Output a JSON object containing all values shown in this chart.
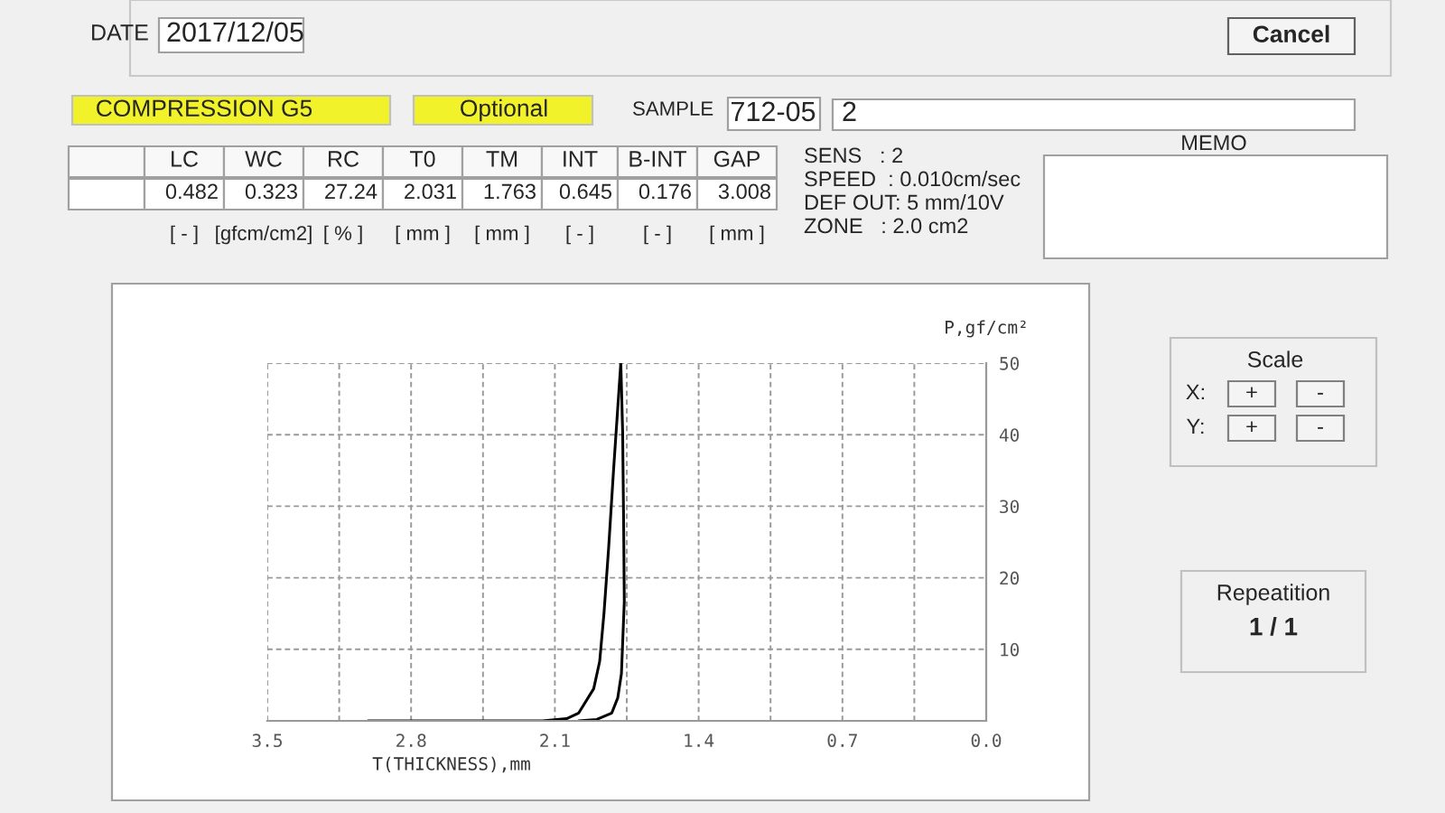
{
  "chart_data": {
    "type": "line",
    "xlabel": "T(THICKNESS),mm",
    "ylabel": "P,gf/cm²",
    "series": [
      {
        "color": "#000000",
        "x": [
          3.01,
          2.16,
          2.043,
          1.984,
          1.911,
          1.882,
          1.861,
          1.838,
          1.814,
          1.794,
          1.779
        ],
        "values": [
          0,
          0,
          0.3,
          1.1,
          4.5,
          8.3,
          15,
          24.3,
          35.2,
          43.7,
          50
        ]
      },
      {
        "color": "#000000",
        "x": [
          1.779,
          1.77,
          1.765,
          1.762,
          1.776,
          1.794,
          1.823,
          1.896,
          1.984
        ],
        "values": [
          50,
          40.3,
          26.8,
          16.7,
          6.6,
          3.2,
          1.1,
          0.2,
          0
        ]
      }
    ],
    "xlim": [
      3.5,
      0
    ],
    "xticks": [
      3.5,
      {
        "value": 3.15,
        "label": null
      },
      2.8,
      {
        "value": 2.45,
        "label": null
      },
      2.1,
      {
        "value": 1.75,
        "label": null
      },
      1.4,
      {
        "value": 1.05,
        "label": null
      },
      0.7,
      {
        "value": 0.35,
        "label": null
      },
      {
        "value": 0,
        "label": "0.0"
      }
    ],
    "ylim": [
      0,
      50
    ],
    "yticks": [
      10,
      20,
      30,
      40,
      50
    ],
    "grid": true,
    "legend": false,
    "marker": "none",
    "line_style": "solid",
    "annotations": [
      "DATE",
      "2017/12/05",
      "Cancel",
      "COMPRESSION G5",
      "Optional",
      "SAMPLE",
      "712-05",
      "2",
      "LC",
      "WC",
      "RC",
      "T0",
      "TM",
      "INT",
      "B-INT",
      "GAP",
      "0.482",
      "0.323",
      "27.24",
      "2.031",
      "1.763",
      "0.645",
      "0.176",
      "3.008",
      "[ - ]",
      "[gfcm/cm2]",
      "[ % ]",
      "[ mm ]",
      "[ mm ]",
      "[ - ]",
      "[ - ]",
      "[ mm ]",
      "SENS   : 2",
      "SPEED  : 0.010cm/sec",
      "DEF OUT: 5 mm/10V",
      "ZONE   : 2.0 cm2",
      "MEMO",
      "Scale",
      "X:",
      "+",
      "-",
      "Y:",
      "+",
      "-",
      "Repeatition",
      "1 / 1"
    ]
  }
}
